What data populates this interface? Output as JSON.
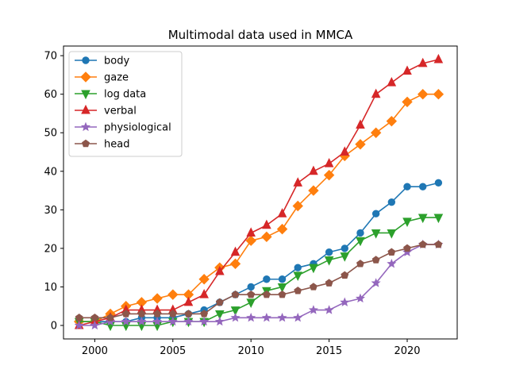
{
  "chart_data": {
    "type": "line",
    "title": "Multimodal data  used in MMCA",
    "xlabel": "",
    "ylabel": "",
    "xlim": [
      1998,
      2023.2
    ],
    "ylim": [
      -3.5,
      72.5
    ],
    "x_ticks": [
      2000,
      2005,
      2010,
      2015,
      2020
    ],
    "y_ticks": [
      0,
      10,
      20,
      30,
      40,
      50,
      60,
      70
    ],
    "grid": false,
    "legend_position": "top-left",
    "x": [
      1999,
      2000,
      2001,
      2002,
      2003,
      2004,
      2005,
      2006,
      2007,
      2008,
      2009,
      2010,
      2011,
      2012,
      2013,
      2014,
      2015,
      2016,
      2017,
      2018,
      2019,
      2020,
      2021,
      2022
    ],
    "series": [
      {
        "name": "body",
        "color": "#1f77b4",
        "marker": "circle",
        "values": [
          1,
          1,
          1,
          1,
          2,
          2,
          2,
          3,
          4,
          6,
          8,
          10,
          12,
          12,
          15,
          16,
          19,
          20,
          24,
          29,
          32,
          36,
          36,
          37
        ]
      },
      {
        "name": "gaze",
        "color": "#ff7f0e",
        "marker": "diamond",
        "values": [
          1,
          1,
          3,
          5,
          6,
          7,
          8,
          8,
          12,
          15,
          16,
          22,
          23,
          25,
          31,
          35,
          39,
          44,
          47,
          50,
          53,
          58,
          60,
          60
        ]
      },
      {
        "name": "log data",
        "color": "#2ca02c",
        "marker": "triangle-down",
        "values": [
          1,
          1,
          0,
          0,
          0,
          0,
          1,
          1,
          1,
          3,
          4,
          6,
          9,
          10,
          13,
          15,
          17,
          18,
          22,
          24,
          24,
          27,
          28,
          28
        ]
      },
      {
        "name": "verbal",
        "color": "#d62728",
        "marker": "triangle-up",
        "values": [
          0,
          1,
          2,
          4,
          4,
          4,
          4,
          6,
          8,
          14,
          19,
          24,
          26,
          29,
          37,
          40,
          42,
          45,
          52,
          60,
          63,
          66,
          68,
          69
        ]
      },
      {
        "name": "physiological",
        "color": "#9467bd",
        "marker": "star",
        "values": [
          0,
          0,
          1,
          1,
          1,
          1,
          1,
          1,
          1,
          1,
          2,
          2,
          2,
          2,
          2,
          4,
          4,
          6,
          7,
          11,
          16,
          19,
          21,
          21
        ]
      },
      {
        "name": "head",
        "color": "#8c564b",
        "marker": "pentagon",
        "values": [
          2,
          2,
          2,
          3,
          3,
          3,
          3,
          3,
          3,
          6,
          8,
          8,
          8,
          8,
          9,
          10,
          11,
          13,
          16,
          17,
          19,
          20,
          21,
          21
        ]
      }
    ]
  }
}
